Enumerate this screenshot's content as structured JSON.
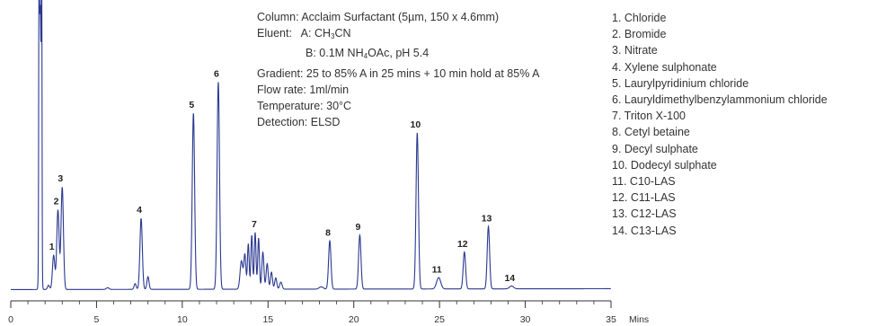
{
  "chart_data": {
    "type": "line",
    "xlim": [
      0,
      35
    ],
    "x_ticks": [
      0,
      5,
      10,
      15,
      20,
      25,
      30,
      35
    ],
    "x_tick_labels": [
      "0",
      "5",
      "10",
      "15",
      "20",
      "25",
      "30",
      "35"
    ],
    "xlabel": "Mins",
    "y_axis_visible": false,
    "grid": false,
    "line_color": "#2b3990",
    "conditions": {
      "column": "Column: Acclaim Surfactant (5µm, 150 x 4.6mm)",
      "eluent_label": "Eluent:",
      "eluent_a_prefix": "A: CH",
      "eluent_a_sub": "3",
      "eluent_a_suffix": "CN",
      "eluent_b_prefix": "B: 0.1M NH",
      "eluent_b_sub": "4",
      "eluent_b_suffix": "OAc, pH 5.4",
      "gradient": "Gradient:  25 to 85% A in 25 mins + 10 min hold at 85% A",
      "flow_rate": "Flow rate: 1ml/min",
      "temperature": "Temperature: 30°C",
      "detection": "Detection: ELSD"
    },
    "peaks": [
      {
        "label": "1",
        "name": "1. Chloride",
        "x": 2.5,
        "height": 0.12
      },
      {
        "label": "2",
        "name": "2. Bromide",
        "x": 2.75,
        "height": 0.28
      },
      {
        "label": "3",
        "name": "3. Nitrate",
        "x": 3.0,
        "height": 0.36
      },
      {
        "label": "4",
        "name": "4. Xylene sulphonate",
        "x": 7.6,
        "height": 0.25
      },
      {
        "label": "5",
        "name": "5. Laurylpyridinium chloride",
        "x": 10.65,
        "height": 0.62
      },
      {
        "label": "6",
        "name": "6. Lauryldimethylbenzylammonium chloride",
        "x": 12.1,
        "height": 0.73
      },
      {
        "label": "7",
        "name": "7. Triton X-100",
        "x": 14.3,
        "height": 0.2
      },
      {
        "label": "8",
        "name": "8. Cetyl betaine",
        "x": 18.6,
        "height": 0.17
      },
      {
        "label": "9",
        "name": "9. Decyl sulphate",
        "x": 20.35,
        "height": 0.19
      },
      {
        "label": "10",
        "name": "10. Dodecyl sulphate",
        "x": 23.7,
        "height": 0.55
      },
      {
        "label": "11",
        "name": "11. C10-LAS",
        "x": 24.95,
        "height": 0.04
      },
      {
        "label": "12",
        "name": "12. C11-LAS",
        "x": 26.45,
        "height": 0.13
      },
      {
        "label": "13",
        "name": "13. C12-LAS",
        "x": 27.85,
        "height": 0.22
      },
      {
        "label": "14",
        "name": "14. C13-LAS",
        "x": 29.2,
        "height": 0.01
      }
    ]
  }
}
